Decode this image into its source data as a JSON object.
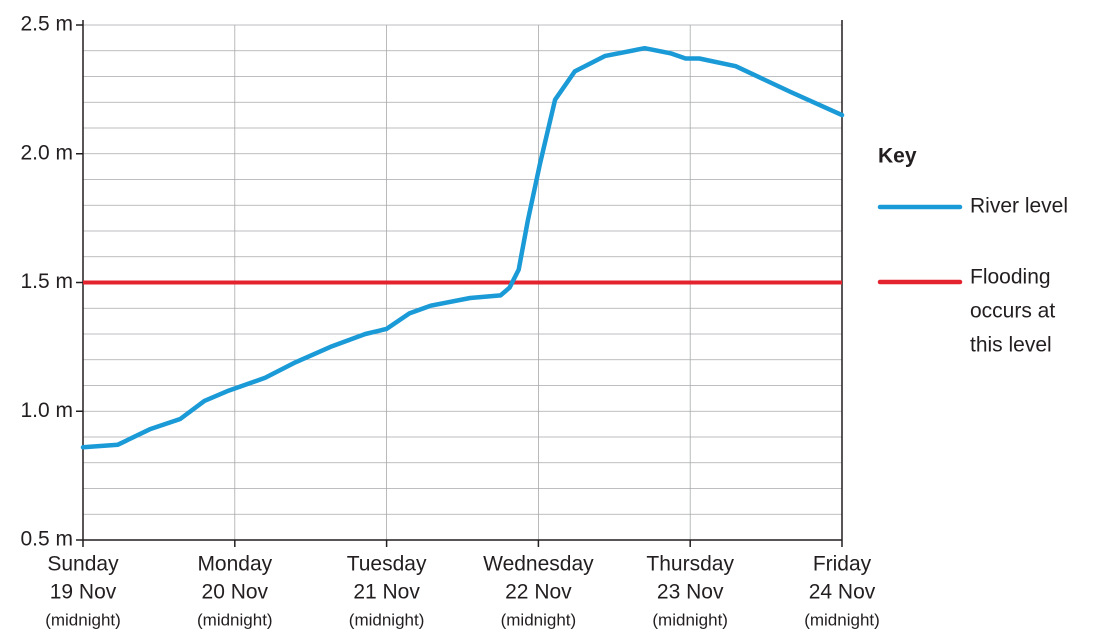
{
  "chart_data": {
    "type": "line",
    "legend_title": "Key",
    "x": [
      0,
      0.23,
      0.44,
      0.64,
      0.8,
      0.96,
      1.2,
      1.4,
      1.63,
      1.86,
      2.0,
      2.15,
      2.29,
      2.55,
      2.75,
      2.81,
      2.87,
      2.93,
      3.01,
      3.11,
      3.24,
      3.44,
      3.7,
      3.87,
      3.97,
      4.06,
      4.3,
      4.66,
      5.0
    ],
    "series": [
      {
        "name": "River level",
        "color": "#1a9ad6",
        "values": [
          0.86,
          0.87,
          0.93,
          0.97,
          1.04,
          1.08,
          1.13,
          1.19,
          1.25,
          1.3,
          1.32,
          1.38,
          1.41,
          1.44,
          1.45,
          1.48,
          1.55,
          1.74,
          1.96,
          2.21,
          2.32,
          2.38,
          2.41,
          2.39,
          2.37,
          2.37,
          2.34,
          2.24,
          2.15
        ]
      }
    ],
    "threshold": {
      "name": [
        "Flooding",
        "occurs at",
        "this level"
      ],
      "value": 1.5,
      "color": "#e3232d"
    },
    "xlim": [
      0,
      5
    ],
    "xticks": [
      {
        "value": 0,
        "label": [
          "Sunday",
          "19 Nov",
          "(midnight)"
        ]
      },
      {
        "value": 1,
        "label": [
          "Monday",
          "20 Nov",
          "(midnight)"
        ]
      },
      {
        "value": 2,
        "label": [
          "Tuesday",
          "21 Nov",
          "(midnight)"
        ]
      },
      {
        "value": 3,
        "label": [
          "Wednesday",
          "22 Nov",
          "(midnight)"
        ]
      },
      {
        "value": 4,
        "label": [
          "Thursday",
          "23 Nov",
          "(midnight)"
        ]
      },
      {
        "value": 5,
        "label": [
          "Friday",
          "24 Nov",
          "(midnight)"
        ]
      }
    ],
    "ylim": [
      0.5,
      2.5
    ],
    "yticks": [
      {
        "value": 0.5,
        "label": "0.5 m"
      },
      {
        "value": 1.0,
        "label": "1.0 m"
      },
      {
        "value": 1.5,
        "label": "1.5 m"
      },
      {
        "value": 2.0,
        "label": "2.0 m"
      },
      {
        "value": 2.5,
        "label": "2.5 m"
      }
    ],
    "yminorticks": [
      0.6,
      0.7,
      0.8,
      0.9,
      1.1,
      1.2,
      1.3,
      1.4,
      1.6,
      1.7,
      1.8,
      1.9,
      2.1,
      2.2,
      2.3,
      2.4
    ],
    "grid": true
  }
}
